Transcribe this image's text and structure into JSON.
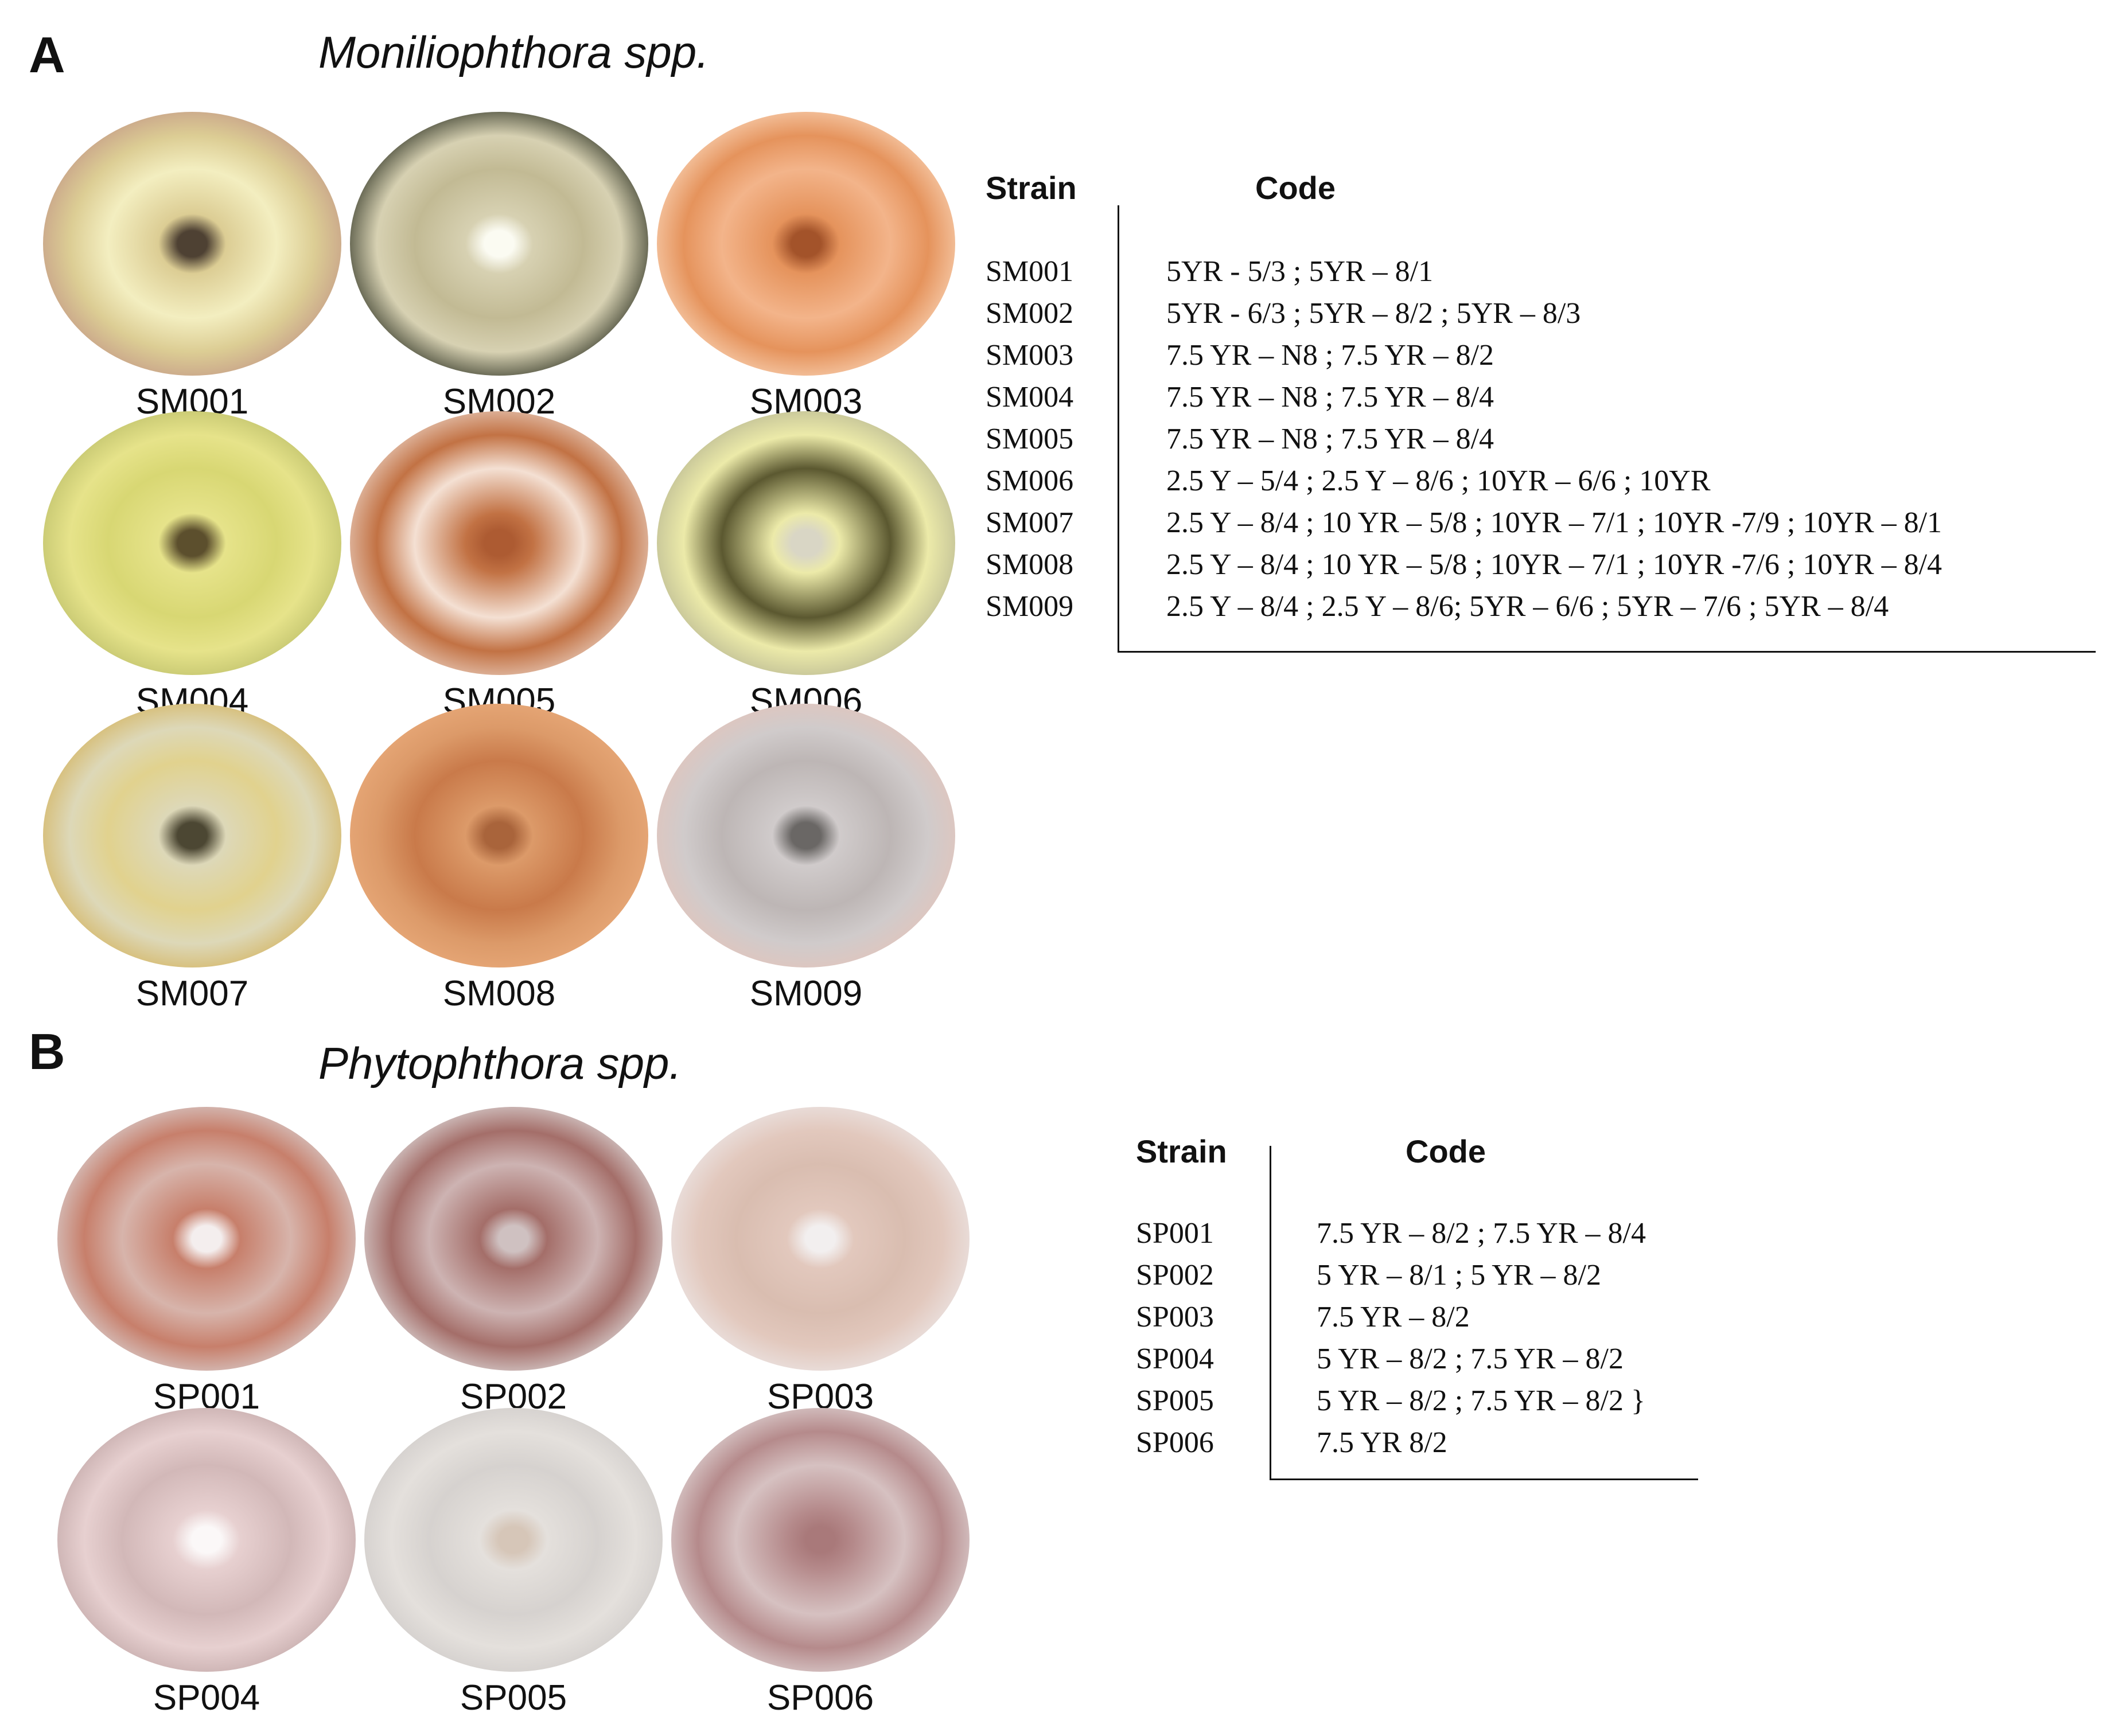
{
  "panel_a": {
    "letter": "A",
    "title": "Moniliophthora spp.",
    "dishes": [
      {
        "label": "SM001",
        "colors": [
          "#4e4133",
          "#dccd94",
          "#f3eec0",
          "#c49a87"
        ]
      },
      {
        "label": "SM002",
        "colors": [
          "#fbfbf2",
          "#d7d1b2",
          "#c2ba94",
          "#2f3324"
        ]
      },
      {
        "label": "SM003",
        "colors": [
          "#a3532a",
          "#e5935c",
          "#f3b48a",
          "#f9d3b5"
        ]
      },
      {
        "label": "SM004",
        "colors": [
          "#5c4f2d",
          "#e6e38a",
          "#d8d773",
          "#bdbf6a"
        ]
      },
      {
        "label": "SM005",
        "colors": [
          "#ad5b32",
          "#c27244",
          "#f4e0d3",
          "#ead0c1"
        ]
      },
      {
        "label": "SM006",
        "colors": [
          "#d9d6c5",
          "#eceaa9",
          "#5b5830",
          "#b8b792"
        ]
      },
      {
        "label": "SM007",
        "colors": [
          "#4c4733",
          "#ddd8b8",
          "#e1d28e",
          "#d4b460"
        ]
      },
      {
        "label": "SM008",
        "colors": [
          "#a9643b",
          "#dc9a69",
          "#c97a4a",
          "#e9aa7a"
        ]
      },
      {
        "label": "SM009",
        "colors": [
          "#6a6765",
          "#d0cbcb",
          "#bdb6b5",
          "#e3c4bb"
        ]
      }
    ],
    "table": {
      "header_strain": "Strain",
      "header_code": "Code",
      "rows": [
        {
          "strain": "SM001",
          "code": "5YR - 5/3 ; 5YR – 8/1"
        },
        {
          "strain": "SM002",
          "code": "5YR - 6/3 ; 5YR – 8/2 ; 5YR – 8/3"
        },
        {
          "strain": "SM003",
          "code": "7.5 YR – N8 ; 7.5 YR – 8/2"
        },
        {
          "strain": "SM004",
          "code": "7.5 YR – N8 ; 7.5 YR – 8/4"
        },
        {
          "strain": "SM005",
          "code": "7.5 YR – N8 ; 7.5 YR – 8/4"
        },
        {
          "strain": "SM006",
          "code": "2.5 Y – 5/4 ; 2.5 Y – 8/6 ; 10YR – 6/6 ; 10YR"
        },
        {
          "strain": "SM007",
          "code": "2.5 Y – 8/4 ; 10 YR – 5/8 ; 10YR – 7/1 ; 10YR -7/9 ; 10YR – 8/1"
        },
        {
          "strain": "SM008",
          "code": "2.5 Y – 8/4 ; 10 YR – 5/8 ; 10YR – 7/1 ; 10YR -7/6 ; 10YR – 8/4"
        },
        {
          "strain": "SM009",
          "code": "2.5 Y – 8/4 ; 2.5 Y – 8/6; 5YR – 6/6 ; 5YR – 7/6 ; 5YR – 8/4"
        }
      ]
    }
  },
  "panel_b": {
    "letter": "B",
    "title": "Phytophthora spp.",
    "dishes": [
      {
        "label": "SP001",
        "colors": [
          "#f4eeee",
          "#c77f6b",
          "#d7b4ab",
          "#d9d0d0"
        ]
      },
      {
        "label": "SP002",
        "colors": [
          "#cfc1c1",
          "#a46e69",
          "#cdb3b2",
          "#dedada"
        ]
      },
      {
        "label": "SP003",
        "colors": [
          "#f2efef",
          "#e2c8bd",
          "#d9bdb0",
          "#ece6e6"
        ]
      },
      {
        "label": "SP004",
        "colors": [
          "#fbf8f8",
          "#e7d0d0",
          "#d2b8b8",
          "#c2a8a8"
        ]
      },
      {
        "label": "SP005",
        "colors": [
          "#d6c6b8",
          "#e4e0dc",
          "#d6d2cf",
          "#cfcbc9"
        ]
      },
      {
        "label": "SP006",
        "colors": [
          "#a9797a",
          "#b58a8b",
          "#d6c1c1",
          "#e0d5d5"
        ]
      }
    ],
    "table": {
      "header_strain": "Strain",
      "header_code": "Code",
      "rows": [
        {
          "strain": "SP001",
          "code": "7.5 YR – 8/2 ; 7.5 YR – 8/4"
        },
        {
          "strain": "SP002",
          "code": "5 YR – 8/1 ; 5 YR – 8/2"
        },
        {
          "strain": "SP003",
          "code": "7.5 YR – 8/2"
        },
        {
          "strain": "SP004",
          "code": "5 YR – 8/2 ; 7.5 YR – 8/2"
        },
        {
          "strain": "SP005",
          "code": "5 YR – 8/2 ; 7.5 YR – 8/2 }"
        },
        {
          "strain": "SP006",
          "code": "7.5 YR 8/2"
        }
      ]
    }
  }
}
